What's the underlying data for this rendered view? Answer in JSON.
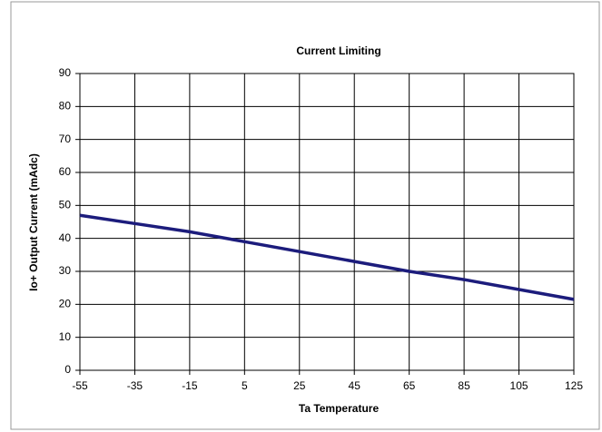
{
  "chart_data": {
    "type": "line",
    "title": "Current Limiting",
    "x_label": "Ta  Temperature",
    "y_label": "Io+  Output Current (mAdc)",
    "x": [
      -55,
      -35,
      -15,
      5,
      25,
      45,
      65,
      85,
      105,
      125
    ],
    "series": [
      {
        "name": "Current Limiting",
        "color": "#1c1c7c",
        "values": [
          47,
          44.5,
          42,
          39,
          36,
          33,
          30,
          27.5,
          24.5,
          21.5
        ]
      }
    ],
    "xlim": [
      -55,
      125
    ],
    "xticks": [
      -55,
      -35,
      -15,
      5,
      25,
      45,
      65,
      85,
      105,
      125
    ],
    "ylim": [
      0,
      90
    ],
    "yticks": [
      0,
      10,
      20,
      30,
      40,
      50,
      60,
      70,
      80,
      90
    ],
    "grid": true
  }
}
